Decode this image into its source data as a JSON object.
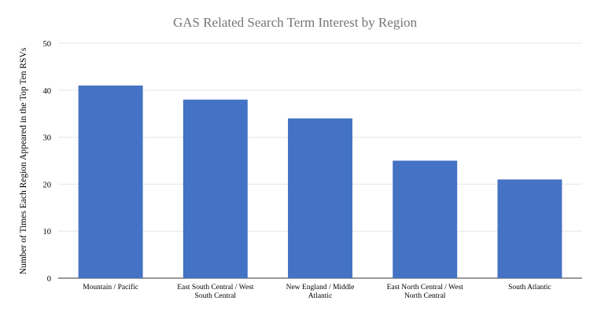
{
  "chart_data": {
    "type": "bar",
    "title": "GAS Related Search Term Interest by Region",
    "xlabel": "",
    "ylabel": "Number of Times Each Region Appeared in the Top Ten  RSVs",
    "categories": [
      [
        "Mountain / Pacific"
      ],
      [
        "East South Central / West",
        "South Central"
      ],
      [
        "New England / Middle",
        "Atlantic"
      ],
      [
        "East North Central / West",
        "North Central"
      ],
      [
        "South Atlantic"
      ]
    ],
    "values": [
      41,
      38,
      34,
      25,
      21
    ],
    "ylim": [
      0,
      50
    ],
    "yticks": [
      0,
      10,
      20,
      30,
      40,
      50
    ],
    "grid": true,
    "legend": "none",
    "bar_color": "#4472c4"
  }
}
